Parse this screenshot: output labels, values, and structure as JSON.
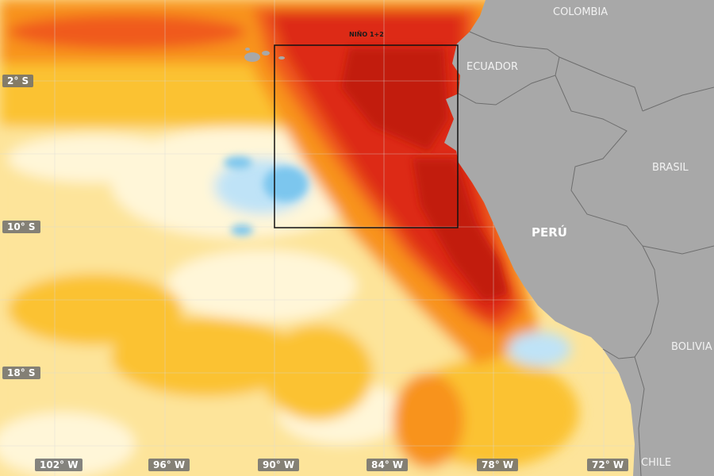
{
  "colors": {
    "ocean_pale": "#fff6d8",
    "anomaly_low": "#fde49a",
    "anomaly_mid": "#fbc233",
    "anomaly_high": "#f8931f",
    "anomaly_strong": "#f05a1c",
    "anomaly_extreme": "#dd2a12",
    "anomaly_peak": "#c21c0d",
    "cool_light": "#bfe3f7",
    "cool": "#7cc6ee",
    "land": "#a8a8a8",
    "border": "#6e6e6e",
    "grid": "#d9d9d9",
    "region_box": "#111111"
  },
  "region_box": {
    "label": "NIÑO 1+2"
  },
  "latitude_labels": [
    "2° S",
    "10° S",
    "18° S"
  ],
  "longitude_labels": [
    "102° W",
    "96° W",
    "90° W",
    "84° W",
    "78° W",
    "72° W"
  ],
  "countries": {
    "colombia": "COLOMBIA",
    "ecuador": "ECUADOR",
    "brasil": "BRASIL",
    "peru": "PERÚ",
    "bolivia": "BOLIVIA",
    "chile": "CHILE"
  }
}
